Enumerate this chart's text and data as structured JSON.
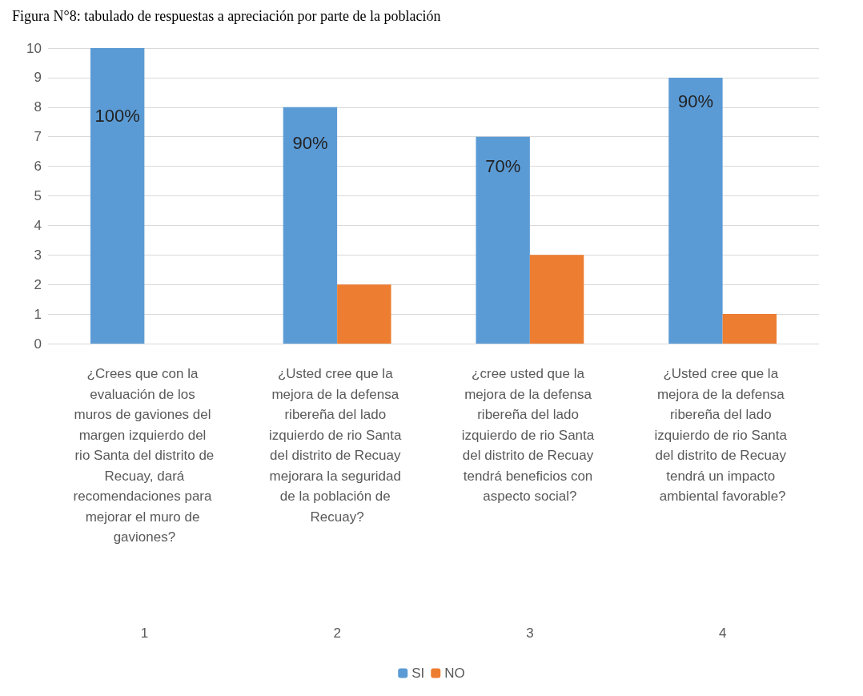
{
  "chart_data": {
    "type": "bar",
    "title": "Figura N°8: tabulado de respuestas a apreciación por parte de la población",
    "categories": [
      "¿Crees que con la evaluación de los muros de gaviones del margen izquierdo del rio Santa del distrito de Recuay, dará recomendaciones para mejorar el muro de gaviones?",
      "¿Usted cree que la mejora de la defensa ribereña del lado izquierdo de rio Santa del distrito de Recuay mejorara la seguridad de la población de Recuay?",
      "¿cree usted que la mejora de la defensa ribereña del lado izquierdo de rio Santa del distrito de Recuay tendrá beneficios con aspecto social?",
      "¿Usted cree que la mejora de la defensa ribereña del lado izquierdo de rio Santa del distrito de Recuay tendrá un impacto ambiental favorable?"
    ],
    "series": [
      {
        "name": "SI",
        "color": "#5b9bd5",
        "values": [
          10,
          8,
          7,
          9
        ]
      },
      {
        "name": "NO",
        "color": "#ed7d31",
        "values": [
          0,
          2,
          3,
          1
        ]
      }
    ],
    "annotations": [
      "1",
      "2",
      "3",
      "4",
      {
        "text": "100%",
        "x": "¿Crees que con la evaluación de los muros de gaviones del margen izquierdo del rio Santa del distrito de Recuay, dará recomendaciones para mejorar el muro de gaviones?",
        "y": 7.7
      },
      {
        "text": "90%",
        "x": "¿Usted cree que la mejora de la defensa ribereña del lado izquierdo de rio Santa del distrito de Recuay mejorara la seguridad de la población de Recuay?",
        "y": 6.8
      },
      {
        "text": "70%",
        "x": "¿cree usted que la mejora de la defensa ribereña del lado izquierdo de rio Santa del distrito de Recuay tendrá beneficios con aspecto social?",
        "y": 6
      },
      {
        "text": "90%",
        "x": "¿Usted cree que la mejora de la defensa ribereña del lado izquierdo de rio Santa del distrito de Recuay tendrá un impacto ambiental favorable?",
        "y": 8.2
      }
    ],
    "ylim": [
      0,
      10
    ],
    "yticks": [
      0,
      1,
      2,
      3,
      4,
      5,
      6,
      7,
      8,
      9,
      10
    ],
    "grid": true,
    "legend": "bottom"
  }
}
